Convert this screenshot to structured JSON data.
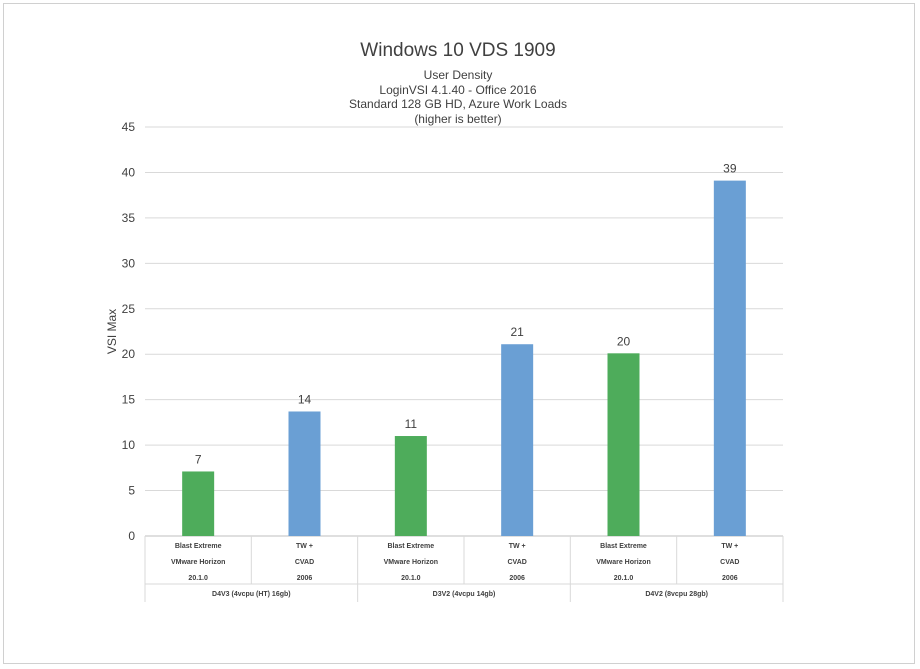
{
  "chart_data": {
    "type": "bar",
    "title": "Windows 10 VDS 1909",
    "subtitle_lines": [
      "User Density",
      "LoginVSI 4.1.40 - Office 2016",
      "Standard  128 GB HD, Azure Work Loads",
      "(higher is better)"
    ],
    "ylabel": "VSI Max",
    "xlabel": "",
    "ylim": [
      0,
      45
    ],
    "yticks": [
      0,
      5,
      10,
      15,
      20,
      25,
      30,
      35,
      40,
      45
    ],
    "grid": true,
    "legend": "none",
    "categories": [
      {
        "lines": [
          "Blast Extreme",
          "VMware Horizon",
          "20.1.0"
        ],
        "group": "D4V3 (4vcpu (HT) 16gb)",
        "value": 7,
        "color": "#4eac5b"
      },
      {
        "lines": [
          "TW +",
          "CVAD",
          "2006"
        ],
        "group": "D4V3 (4vcpu (HT) 16gb)",
        "value": 14,
        "color": "#6a9fd4"
      },
      {
        "lines": [
          "Blast Extreme",
          "VMware Horizon",
          "20.1.0"
        ],
        "group": "D3V2 (4vcpu 14gb)",
        "value": 11,
        "color": "#4eac5b"
      },
      {
        "lines": [
          "TW +",
          "CVAD",
          "2006"
        ],
        "group": "D3V2 (4vcpu 14gb)",
        "value": 21,
        "color": "#6a9fd4"
      },
      {
        "lines": [
          "Blast Extreme",
          "VMware Horizon",
          "20.1.0"
        ],
        "group": "D4V2 (8vcpu 28gb)",
        "value": 20,
        "color": "#4eac5b"
      },
      {
        "lines": [
          "TW +",
          "CVAD",
          "2006"
        ],
        "group": "D4V2 (8vcpu 28gb)",
        "value": 39,
        "color": "#6a9fd4"
      }
    ],
    "groups": [
      "D4V3 (4vcpu (HT) 16gb)",
      "D3V2 (4vcpu 14gb)",
      "D4V2 (8vcpu 28gb)"
    ],
    "bar_heights_shown": [
      7.1,
      13.7,
      11.0,
      21.1,
      20.1,
      39.1
    ]
  }
}
